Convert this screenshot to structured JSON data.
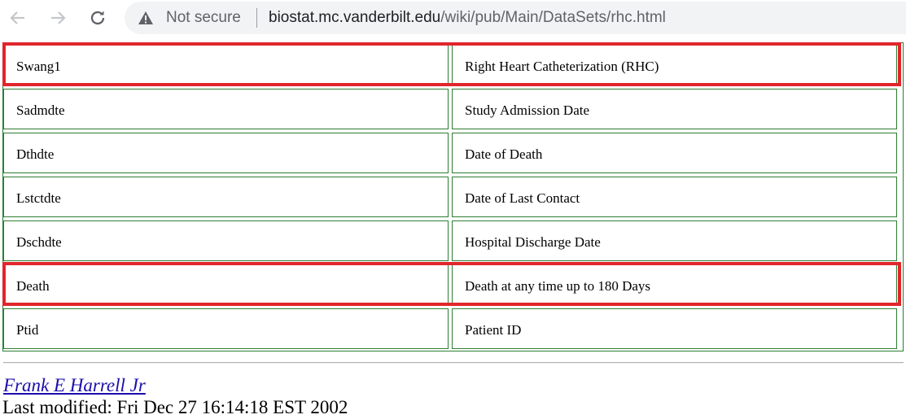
{
  "browser": {
    "security_label": "Not secure",
    "url_host": "biostat.mc.vanderbilt.edu",
    "url_path": "/wiki/pub/Main/DataSets/rhc.html"
  },
  "table": {
    "rows": [
      {
        "name": "Swang1",
        "description": "Right Heart Catheterization (RHC)",
        "highlighted": true
      },
      {
        "name": "Sadmdte",
        "description": "Study Admission Date",
        "highlighted": false
      },
      {
        "name": "Dthdte",
        "description": "Date of Death",
        "highlighted": false
      },
      {
        "name": "Lstctdte",
        "description": "Date of Last Contact",
        "highlighted": false
      },
      {
        "name": "Dschdte",
        "description": "Hospital Discharge Date",
        "highlighted": false
      },
      {
        "name": "Death",
        "description": "Death at any time up to 180 Days",
        "highlighted": true
      },
      {
        "name": "Ptid",
        "description": "Patient ID",
        "highlighted": false
      }
    ]
  },
  "footer": {
    "author": "Frank E Harrell Jr",
    "last_modified": "Last modified: Fri Dec 27 16:14:18 EST 2002"
  },
  "colors": {
    "table_border": "#2e7d32",
    "highlight": "#e0262b",
    "link": "#1a0dab"
  }
}
